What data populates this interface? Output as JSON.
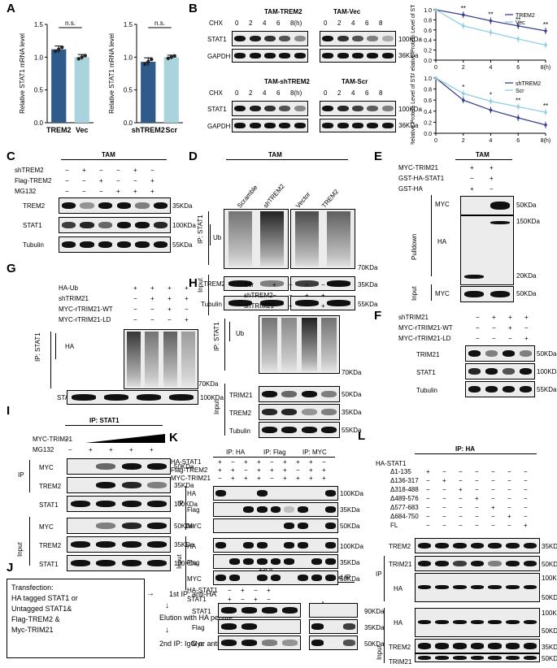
{
  "panels": {
    "A": "A",
    "B": "B",
    "C": "C",
    "D": "D",
    "E": "E",
    "F": "F",
    "G": "G",
    "H": "H",
    "I": "I",
    "J": "J",
    "K": "K",
    "L": "L"
  },
  "chart_data": [
    {
      "type": "bar",
      "categories": [
        "TREM2",
        "Vec"
      ],
      "values": [
        1.12,
        1.0
      ],
      "errors": [
        0.05,
        0.04
      ],
      "ylabel": "Relative STAT1 mRNA level",
      "ylim": [
        0,
        1.5
      ],
      "yticks": [
        "0.0",
        "0.5",
        "1.0",
        "1.5"
      ],
      "annotation": "n.s.",
      "colors": [
        "#2f5a8c",
        "#a9d4dd"
      ]
    },
    {
      "type": "bar",
      "categories": [
        "shTREM2",
        "Scr"
      ],
      "values": [
        0.93,
        1.0
      ],
      "errors": [
        0.06,
        0.03
      ],
      "ylabel": "Relative STAT1 mRNA level",
      "ylim": [
        0,
        1.5
      ],
      "yticks": [
        "0.0",
        "0.5",
        "1.0",
        "1.5"
      ],
      "annotation": "n.s.",
      "colors": [
        "#2f5a8c",
        "#a9d4dd"
      ]
    },
    {
      "type": "line",
      "x": [
        0,
        2,
        4,
        6,
        8
      ],
      "xticks": [
        "0",
        "2",
        "4",
        "6",
        "8(h)"
      ],
      "ylabel": "Relative Protein Level of STAT1",
      "ylim": [
        0,
        1.0
      ],
      "yticks": [
        "0.0",
        "0.2",
        "0.4",
        "0.6",
        "0.8",
        "1.0"
      ],
      "series": [
        {
          "name": "TREM2",
          "values": [
            1.0,
            0.9,
            0.78,
            0.68,
            0.58
          ],
          "color": "#3a3f8f"
        },
        {
          "name": "Vec",
          "values": [
            1.0,
            0.68,
            0.55,
            0.42,
            0.3
          ],
          "color": "#8fd0e0"
        }
      ],
      "stars": [
        "**",
        "**",
        "**",
        "**"
      ],
      "legend": "top-right"
    },
    {
      "type": "line",
      "x": [
        0,
        2,
        4,
        6,
        8
      ],
      "xticks": [
        "0",
        "2",
        "4",
        "6",
        "8(h)"
      ],
      "ylabel": "Relative Protein Level of STAT1",
      "ylim": [
        0,
        1.0
      ],
      "yticks": [
        "0.0",
        "0.2",
        "0.4",
        "0.6",
        "0.8",
        "1.0"
      ],
      "series": [
        {
          "name": "shTREM2",
          "values": [
            1.0,
            0.6,
            0.42,
            0.28,
            0.15
          ],
          "color": "#3a3f8f"
        },
        {
          "name": "Scr",
          "values": [
            1.0,
            0.72,
            0.58,
            0.48,
            0.38
          ],
          "color": "#8fd0e0"
        }
      ],
      "stars": [
        "*",
        "*",
        "**",
        "**"
      ],
      "legend": "top-right"
    }
  ],
  "B": {
    "tam_trem2": "TAM-TREM2",
    "tam_vec": "TAM-Vec",
    "tam_shtrem2": "TAM-shTREM2",
    "tam_scr": "TAM-Scr",
    "chx": "CHX",
    "times": [
      "0",
      "2",
      "4",
      "6",
      "8(h)"
    ],
    "times2": [
      "0",
      "2",
      "4",
      "6",
      "8"
    ],
    "stat1": "STAT1",
    "gapdh": "GAPDH",
    "kda100": "100KDa",
    "kda36": "36KDa"
  },
  "C": {
    "tam": "TAM",
    "rows": [
      "shTREM2",
      "Flag-TREM2",
      "MG132"
    ],
    "signs": [
      [
        "−",
        "+",
        "−",
        "−",
        "+",
        "−"
      ],
      [
        "−",
        "−",
        "+",
        "−",
        "−",
        "+"
      ],
      [
        "−",
        "−",
        "−",
        "+",
        "+",
        "+"
      ]
    ],
    "blots": [
      "TREM2",
      "STAT1",
      "Tubulin"
    ],
    "kda": [
      "35KDa",
      "100KDa",
      "55KDa"
    ]
  },
  "D": {
    "tam": "TAM",
    "lanes": [
      "Scramble",
      "shTREM2",
      "Vector",
      "TREM2"
    ],
    "ip": "IP: STAT1",
    "ub": "Ub",
    "kda70": "70KDa",
    "input": "Input",
    "trem2": "TREM2",
    "tubulin": "Tubulin",
    "kda35": "35KDa",
    "kda55": "55KDa"
  },
  "E": {
    "tam": "TAM",
    "rows": [
      "MYC-TRIM21",
      "GST-HA-STAT1",
      "GST-HA"
    ],
    "signs": [
      [
        "+",
        "+"
      ],
      [
        "−",
        "+"
      ],
      [
        "+",
        "−"
      ]
    ],
    "myc": "MYC",
    "ha": "HA",
    "pulldown": "Pulldown",
    "input": "Input",
    "kda50": "50KDa",
    "kda150": "150KDa",
    "kda20": "20KDa"
  },
  "F": {
    "rows": [
      "shTRIM21",
      "MYC-rTRIM21-WT",
      "MYC-rTRIM21-LD"
    ],
    "signs": [
      [
        "−",
        "+",
        "+",
        "+"
      ],
      [
        "−",
        "−",
        "+",
        "−"
      ],
      [
        "−",
        "−",
        "−",
        "+"
      ]
    ],
    "blots": [
      "TRIM21",
      "STAT1",
      "Tubulin"
    ],
    "kda": [
      "50KDa",
      "100KDa",
      "55KDa"
    ]
  },
  "G": {
    "rows": [
      "HA-Ub",
      "shTRIM21",
      "MYC-rTRIM21-WT",
      "MYC-rTRIM21-LD"
    ],
    "signs": [
      [
        "+",
        "+",
        "+",
        "+"
      ],
      [
        "−",
        "+",
        "+",
        "+"
      ],
      [
        "−",
        "−",
        "+",
        "−"
      ],
      [
        "−",
        "−",
        "−",
        "+"
      ]
    ],
    "ip": "IP: STAT1",
    "ha": "HA",
    "kda70": "70KDa",
    "stat1": "STAT1",
    "kda100": "100KDa"
  },
  "H": {
    "rows": [
      "Scr",
      "shTREM2",
      "shTRIM21"
    ],
    "signs": [
      [
        "+",
        "−",
        "−",
        "−"
      ],
      [
        "−",
        "−",
        "+",
        "+"
      ],
      [
        "−",
        "+",
        "−",
        "+"
      ]
    ],
    "ip": "IP: STAT1",
    "ub": "Ub",
    "kda70": "70KDa",
    "input": "Input",
    "blots": [
      "TRIM21",
      "TREM2",
      "Tubulin"
    ],
    "kda": [
      "50KDa",
      "35KDa",
      "55KDa"
    ]
  },
  "I": {
    "ip": "IP: STAT1",
    "rows": [
      "MYC-TRIM21",
      "MG132"
    ],
    "mg": [
      "−",
      "+",
      "+",
      "+",
      "+"
    ],
    "ipblots": [
      "MYC",
      "TREM2",
      "STAT1"
    ],
    "inblots": [
      "MYC",
      "TREM2",
      "STAT1"
    ],
    "kda": [
      "50KDa",
      "35KDa",
      "100KDa"
    ],
    "iplabel": "IP",
    "input": "Input"
  },
  "J": {
    "box": [
      "Transfection:",
      "HA tagged STAT1 or",
      "Untagged STAT1&",
      "Flag-TREM2 &",
      "Myc-TRIM21"
    ],
    "step1": "1st IP: anti-HA",
    "step2": "Elution with HA peptite",
    "step3": "2nd IP: IgG or anti-Flag",
    "first_ip": "1st IP",
    "second_ip": "2nd IP",
    "input": "Input",
    "elute": "Elute",
    "rows": [
      "HA-STAT1",
      "STAT1"
    ],
    "signs": [
      [
        "−",
        "+",
        "−",
        "+"
      ],
      [
        "+",
        "−",
        "+",
        "−"
      ]
    ],
    "lanes2": [
      "Input",
      "IgG",
      "Flag"
    ],
    "blots": [
      "STAT1",
      "Flag",
      "Myc"
    ],
    "kda": [
      "90KDa",
      "35KDa",
      "50KDa"
    ]
  },
  "K": {
    "ip_ha": "IP: HA",
    "ip_flag": "IP: Flag",
    "ip_myc": "IP: MYC",
    "rows": [
      "HA-STAT1",
      "Flag-TREM2",
      "MYC-TRIM21"
    ],
    "ipblots": [
      "HA",
      "Flag",
      "MYC"
    ],
    "inblots": [
      "HA",
      "Flag",
      "MYC"
    ],
    "kda": [
      "100KDa",
      "35KDa",
      "50KDa"
    ],
    "iplabel": "IP",
    "input": "Input"
  },
  "L": {
    "ip": "IP: HA",
    "header": "HA-STAT1",
    "rows": [
      "Δ1-135",
      "Δ136-317",
      "Δ318-488",
      "Δ489-576",
      "Δ577-683",
      "Δ684-750",
      "FL"
    ],
    "ipblots": [
      "TREM2",
      "TRIM21",
      "HA"
    ],
    "ipkda": [
      "35KDa",
      "50KDa",
      "100KDa",
      "50KDa"
    ],
    "inblots": [
      "HA",
      "TREM2",
      "TRIM21",
      "Tubulin"
    ],
    "inkda": [
      "100KDa",
      "50KDa",
      "35KDa",
      "50KDa",
      "55KDa"
    ],
    "iplabel": "IP",
    "input": "Input"
  }
}
